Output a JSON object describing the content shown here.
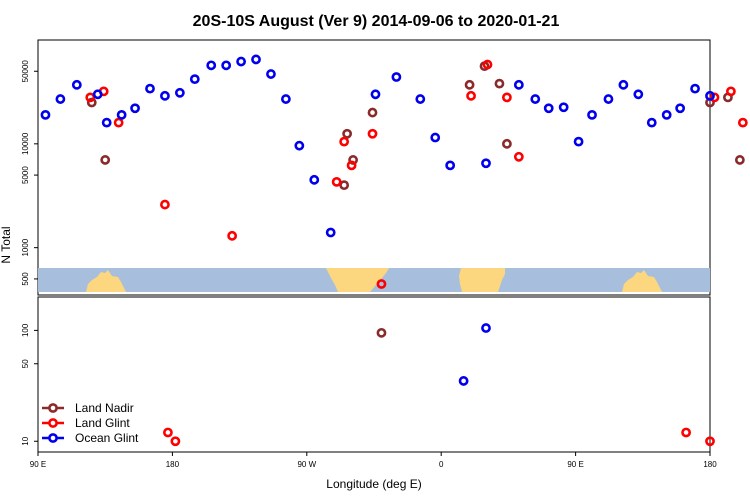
{
  "chart_data": {
    "type": "scatter",
    "title": "20S-10S August (Ver 9)   2014-09-06 to 2020-01-21",
    "xlabel": "Longitude (deg E)",
    "ylabel": "N Total",
    "x_ticks": [
      {
        "value": 90,
        "label": "90 E"
      },
      {
        "value": 180,
        "label": "180"
      },
      {
        "value": 270,
        "label": "90 W"
      },
      {
        "value": 360,
        "label": "0"
      },
      {
        "value": 450,
        "label": "90 E"
      },
      {
        "value": 540,
        "label": "180"
      }
    ],
    "xlim": [
      90,
      540
    ],
    "scale": "log",
    "upper_panel": {
      "ylim": [
        350,
        100000
      ],
      "y_ticks": [
        {
          "value": 500,
          "label": "500"
        },
        {
          "value": 1000,
          "label": "1000"
        },
        {
          "value": 5000,
          "label": "5000"
        },
        {
          "value": 10000,
          "label": "10000"
        },
        {
          "value": 50000,
          "label": "50000"
        }
      ]
    },
    "lower_panel": {
      "ylim": [
        8,
        200
      ],
      "y_ticks": [
        {
          "value": 10,
          "label": "10"
        },
        {
          "value": 50,
          "label": "50"
        },
        {
          "value": 100,
          "label": "100"
        }
      ]
    },
    "legend_position": "bottom-left",
    "series": [
      {
        "name": "Land Nadir",
        "color": "#8b2a2a",
        "upper": [
          [
            126,
            25000
          ],
          [
            135,
            7000
          ],
          [
            295,
            4000
          ],
          [
            297,
            12500
          ],
          [
            301,
            7000
          ],
          [
            314,
            20000
          ],
          [
            379,
            37000
          ],
          [
            389,
            56000
          ],
          [
            399,
            38000
          ],
          [
            404,
            10000
          ],
          [
            540,
            25000
          ],
          [
            552,
            28000
          ],
          [
            560,
            7000
          ]
        ],
        "lower": [
          [
            320,
            95
          ]
        ]
      },
      {
        "name": "Land Glint",
        "color": "#ff0000",
        "upper": [
          [
            125,
            28000
          ],
          [
            134,
            32000
          ],
          [
            144,
            16000
          ],
          [
            175,
            2600
          ],
          [
            220,
            1300
          ],
          [
            290,
            4300
          ],
          [
            295,
            10500
          ],
          [
            300,
            6200
          ],
          [
            314,
            12500
          ],
          [
            380,
            29000
          ],
          [
            391,
            58000
          ],
          [
            404,
            28000
          ],
          [
            412,
            7500
          ],
          [
            543,
            28000
          ],
          [
            554,
            32000
          ],
          [
            562,
            16000
          ]
        ],
        "lower": [
          [
            177,
            12
          ],
          [
            182,
            10
          ],
          [
            320,
            0
          ],
          [
            524,
            12
          ],
          [
            540,
            10
          ]
        ]
      },
      {
        "name": "Ocean Glint",
        "color": "#0000ee",
        "upper": [
          [
            95,
            19000
          ],
          [
            105,
            27000
          ],
          [
            116,
            37000
          ],
          [
            130,
            30000
          ],
          [
            136,
            16000
          ],
          [
            146,
            19000
          ],
          [
            155,
            22000
          ],
          [
            165,
            34000
          ],
          [
            175,
            29000
          ],
          [
            185,
            31000
          ],
          [
            195,
            42000
          ],
          [
            206,
            57000
          ],
          [
            216,
            57000
          ],
          [
            226,
            62000
          ],
          [
            236,
            65000
          ],
          [
            246,
            47000
          ],
          [
            256,
            27000
          ],
          [
            265,
            9600
          ],
          [
            275,
            4500
          ],
          [
            286,
            1400
          ],
          [
            316,
            30000
          ],
          [
            330,
            44000
          ],
          [
            346,
            27000
          ],
          [
            356,
            11500
          ],
          [
            366,
            6200
          ],
          [
            390,
            6500
          ],
          [
            412,
            37000
          ],
          [
            423,
            27000
          ],
          [
            432,
            22000
          ],
          [
            442,
            22500
          ],
          [
            452,
            10500
          ],
          [
            461,
            19000
          ],
          [
            472,
            27000
          ],
          [
            482,
            37000
          ],
          [
            492,
            30000
          ],
          [
            501,
            16000
          ],
          [
            511,
            19000
          ],
          [
            520,
            22000
          ],
          [
            530,
            34000
          ],
          [
            540,
            29000
          ]
        ],
        "lower": [
          [
            375,
            35
          ],
          [
            390,
            105
          ]
        ]
      }
    ]
  }
}
